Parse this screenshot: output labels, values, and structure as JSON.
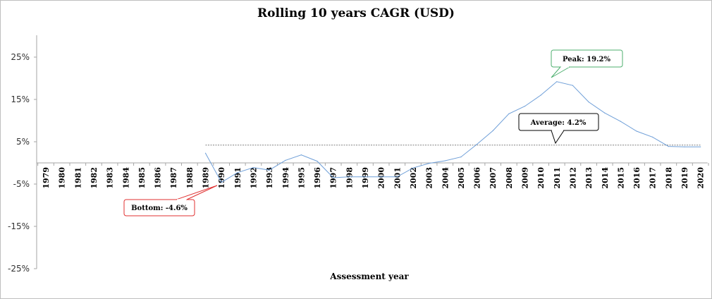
{
  "chart_data": {
    "type": "line",
    "title": "Rolling 10 years CAGR (USD)",
    "xlabel": "Assessment year",
    "ylabel": "",
    "ylim": [
      -25,
      25
    ],
    "yticks": [
      "25%",
      "15%",
      "5%",
      "-5%",
      "-15%",
      "-25%"
    ],
    "ytick_values": [
      25,
      15,
      5,
      -5,
      -15,
      -25
    ],
    "x": [
      "1979",
      "1980",
      "1981",
      "1982",
      "1983",
      "1984",
      "1985",
      "1986",
      "1987",
      "1988",
      "1989",
      "1990",
      "1991",
      "1992",
      "1993",
      "1994",
      "1995",
      "1996",
      "1997",
      "1998",
      "1999",
      "2000",
      "2001",
      "2002",
      "2003",
      "2004",
      "2005",
      "2006",
      "2007",
      "2008",
      "2009",
      "2010",
      "2011",
      "2012",
      "2013",
      "2014",
      "2015",
      "2016",
      "2017",
      "2018",
      "2019",
      "2020"
    ],
    "series": [
      {
        "values": [
          null,
          null,
          null,
          null,
          null,
          null,
          null,
          null,
          null,
          null,
          2.3,
          -4.6,
          -2.3,
          -1.1,
          -1.7,
          0.6,
          1.9,
          0.4,
          -3.5,
          -3.3,
          -3.3,
          -3.3,
          -3.3,
          -1.2,
          -0.1,
          0.5,
          1.4,
          4.4,
          7.6,
          11.6,
          13.4,
          16.0,
          19.2,
          18.3,
          14.4,
          11.8,
          9.8,
          7.5,
          6.1,
          3.9,
          3.8,
          3.8
        ],
        "color": "#6f9fd8"
      }
    ],
    "average": {
      "value": 4.2,
      "from": "1989",
      "to": "2020",
      "color": "#808080"
    },
    "annotations": [
      {
        "text": "Peak: 19.2%",
        "color": "#4caf6e"
      },
      {
        "text": "Average: 4.2%",
        "color": "#000000"
      },
      {
        "text": "Bottom: -4.6%",
        "color": "#e03030"
      }
    ],
    "grid": false,
    "legend": "none"
  }
}
